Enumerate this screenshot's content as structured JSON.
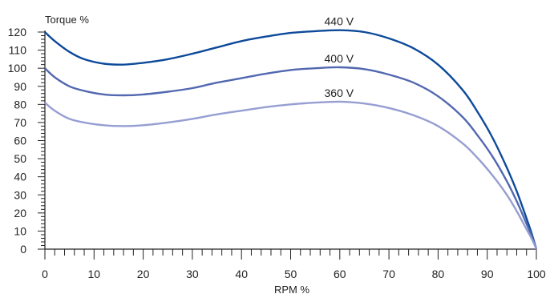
{
  "chart_data": {
    "type": "line",
    "ylabel": "Torque %",
    "xlabel": "RPM %",
    "xlim": [
      0,
      100
    ],
    "ylim": [
      0,
      120
    ],
    "x_ticks": [
      "0",
      "10",
      "20",
      "30",
      "40",
      "50",
      "60",
      "70",
      "80",
      "90",
      "100"
    ],
    "y_ticks": [
      "0",
      "10",
      "20",
      "30",
      "40",
      "50",
      "60",
      "70",
      "80",
      "90",
      "100",
      "110",
      "120"
    ],
    "grid": false,
    "legend": "none",
    "series": [
      {
        "name": "440 V",
        "color": "#0d4a9a",
        "x": [
          0,
          2,
          5,
          8,
          12,
          16,
          20,
          25,
          30,
          35,
          40,
          45,
          50,
          55,
          60,
          65,
          70,
          75,
          80,
          85,
          88,
          91,
          94,
          96,
          98,
          99,
          100
        ],
        "y": [
          120,
          115,
          109,
          105,
          102.5,
          102,
          103,
          105,
          108,
          111.5,
          115,
          117.5,
          119.5,
          120.5,
          121,
          120,
          116.5,
          111,
          102,
          88,
          76,
          62,
          45,
          32,
          17,
          9,
          0
        ]
      },
      {
        "name": "400 V",
        "color": "#5268b0",
        "x": [
          0,
          2,
          5,
          8,
          12,
          16,
          20,
          25,
          30,
          35,
          40,
          45,
          50,
          55,
          60,
          65,
          70,
          75,
          80,
          85,
          88,
          91,
          94,
          96,
          98,
          99,
          100
        ],
        "y": [
          100,
          95,
          90,
          87.5,
          85.5,
          85,
          85.5,
          87,
          89,
          92,
          94.5,
          97,
          99,
          100,
          100.5,
          99.5,
          96.5,
          92,
          84.5,
          73,
          63,
          51.5,
          37.5,
          26.5,
          14,
          7.5,
          0
        ]
      },
      {
        "name": "360 V",
        "color": "#969ed2",
        "x": [
          0,
          2,
          5,
          8,
          12,
          16,
          20,
          25,
          30,
          35,
          40,
          45,
          50,
          55,
          60,
          65,
          70,
          75,
          80,
          85,
          88,
          91,
          94,
          96,
          98,
          99,
          100
        ],
        "y": [
          81,
          76.5,
          72,
          70,
          68.5,
          68,
          68.5,
          70,
          72,
          74.5,
          76.5,
          78.5,
          80,
          81,
          81.5,
          80.5,
          78,
          74,
          68,
          58.5,
          50.5,
          41,
          30,
          21,
          11,
          6,
          0
        ]
      }
    ]
  }
}
